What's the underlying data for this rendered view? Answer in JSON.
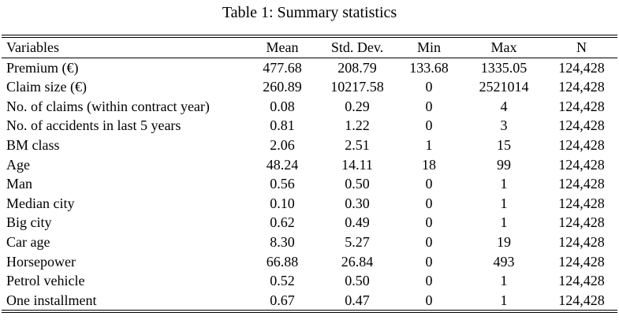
{
  "caption": "Table 1: Summary statistics",
  "table": {
    "headers": [
      "Variables",
      "Mean",
      "Std. Dev.",
      "Min",
      "Max",
      "N"
    ],
    "rows": [
      [
        "Premium (€)",
        "477.68",
        "208.79",
        "133.68",
        "1335.05",
        "124,428"
      ],
      [
        "Claim size (€)",
        "260.89",
        "10217.58",
        "0",
        "2521014",
        "124,428"
      ],
      [
        "No. of claims (within contract year)",
        "0.08",
        "0.29",
        "0",
        "4",
        "124,428"
      ],
      [
        "No. of accidents in last 5 years",
        "0.81",
        "1.22",
        "0",
        "3",
        "124,428"
      ],
      [
        "BM class",
        "2.06",
        "2.51",
        "1",
        "15",
        "124,428"
      ],
      [
        "Age",
        "48.24",
        "14.11",
        "18",
        "99",
        "124,428"
      ],
      [
        "Man",
        "0.56",
        "0.50",
        "0",
        "1",
        "124,428"
      ],
      [
        "Median city",
        "0.10",
        "0.30",
        "0",
        "1",
        "124,428"
      ],
      [
        "Big city",
        "0.62",
        "0.49",
        "0",
        "1",
        "124,428"
      ],
      [
        "Car age",
        "8.30",
        "5.27",
        "0",
        "19",
        "124,428"
      ],
      [
        "Horsepower",
        "66.88",
        "26.84",
        "0",
        "493",
        "124,428"
      ],
      [
        "Petrol vehicle",
        "0.52",
        "0.50",
        "0",
        "1",
        "124,428"
      ],
      [
        "One installment",
        "0.67",
        "0.47",
        "0",
        "1",
        "124,428"
      ]
    ]
  }
}
